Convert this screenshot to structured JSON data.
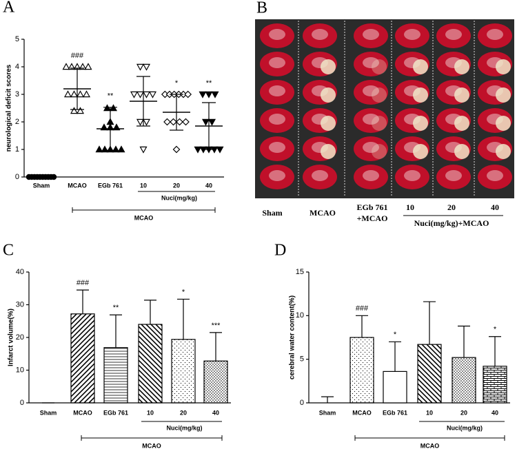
{
  "chart_data": [
    {
      "type": "scatter",
      "panel": "A",
      "y_label": "neurological deficit scores",
      "categories": [
        "Sham",
        "MCAO",
        "EGb 761",
        "10",
        "20",
        "40"
      ],
      "points": [
        [
          0,
          0,
          0,
          0,
          0,
          0,
          0,
          0,
          0,
          0
        ],
        [
          4,
          4,
          4,
          4,
          4,
          3,
          3,
          3,
          3,
          2.4,
          2.4
        ],
        [
          2.5,
          2.5,
          2,
          1.8,
          1.8,
          1.8,
          1,
          1,
          1,
          1,
          1
        ],
        [
          4,
          4,
          3,
          3,
          3,
          3,
          2,
          2,
          1
        ],
        [
          3,
          3,
          3,
          3,
          3,
          3,
          2,
          2,
          2,
          2,
          1
        ],
        [
          3,
          3,
          3,
          2,
          2,
          1,
          1,
          1,
          1,
          1
        ]
      ],
      "means": [
        0,
        3.2,
        1.75,
        2.75,
        2.35,
        1.85
      ],
      "sds": [
        0,
        0.75,
        0.78,
        0.9,
        0.65,
        0.85
      ],
      "markers": [
        "circle-filled",
        "triangle-up-open",
        "triangle-up-filled",
        "triangle-down-open",
        "diamond-open",
        "triangle-down-filled"
      ],
      "annotations": [
        null,
        "###",
        "**",
        null,
        "*",
        "**"
      ],
      "group_labels": [
        "Nuci(mg/kg)",
        "MCAO"
      ],
      "ylim": [
        0,
        5
      ],
      "yticks": [
        0,
        1,
        2,
        3,
        4,
        5
      ]
    },
    {
      "type": "bar",
      "panel": "C",
      "y_label": "Infarct volume(%)",
      "categories": [
        "Sham",
        "MCAO",
        "EGb 761",
        "10",
        "20",
        "40"
      ],
      "values": [
        0,
        27.2,
        16.9,
        24,
        19.4,
        12.8
      ],
      "errors": [
        0,
        7.3,
        10,
        7.4,
        12.3,
        8.7
      ],
      "patterns": [
        "white",
        "diag-up",
        "hlines",
        "diag-down",
        "dots",
        "dense-dots"
      ],
      "annotations": [
        null,
        "###",
        "**",
        null,
        "*",
        "***"
      ],
      "group_labels": [
        "Nuci(mg/kg)",
        "MCAO"
      ],
      "ylim": [
        0,
        40
      ],
      "yticks": [
        0,
        10,
        20,
        30,
        40
      ]
    },
    {
      "type": "bar",
      "panel": "D",
      "y_label": "cerebral water content(%)",
      "categories": [
        "Sham",
        "MCAO",
        "EGb 761",
        "10",
        "20",
        "40"
      ],
      "values": [
        0,
        7.5,
        3.6,
        6.7,
        5.2,
        4.2
      ],
      "errors": [
        0.7,
        2.5,
        3.4,
        4.9,
        3.6,
        3.4
      ],
      "patterns": [
        "white",
        "dots",
        "white",
        "diag-down",
        "dense-dots",
        "brick"
      ],
      "annotations": [
        null,
        "###",
        "*",
        null,
        null,
        "*"
      ],
      "group_labels": [
        "Nuci(mg/kg)",
        "MCAO"
      ],
      "ylim": [
        0,
        15
      ],
      "yticks": [
        0,
        5,
        10,
        15
      ]
    }
  ],
  "panel_b": {
    "panel": "B",
    "labels": [
      "Sham",
      "MCAO",
      "EGb 761",
      "+MCAO",
      "10",
      "20",
      "40",
      "Nuci(mg/kg)+MCAO"
    ]
  }
}
